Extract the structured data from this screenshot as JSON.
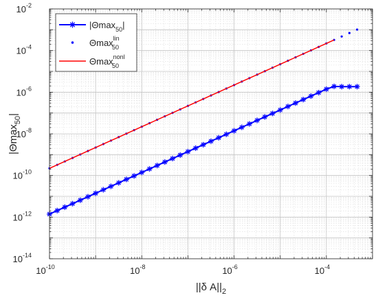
{
  "chart_data": {
    "type": "line",
    "xscale": "log",
    "yscale": "log",
    "xlim": [
      1e-10,
      0.001
    ],
    "ylim": [
      1e-14,
      0.01
    ],
    "grid": true,
    "legend_position": "top-left",
    "xlabel": {
      "base": "||δ A||",
      "sub": "2"
    },
    "ylabel": {
      "base": "|Θmax",
      "sub": "50",
      "tail": "|"
    },
    "x_ticks": [
      {
        "exp": "-10",
        "value": 1e-10
      },
      {
        "exp": "-8",
        "value": 1e-08
      },
      {
        "exp": "-6",
        "value": 1e-06
      },
      {
        "exp": "-4",
        "value": 0.0001
      }
    ],
    "y_ticks": [
      {
        "exp": "-14",
        "value": 1e-14
      },
      {
        "exp": "-12",
        "value": 1e-12
      },
      {
        "exp": "-10",
        "value": 1e-10
      },
      {
        "exp": "-8",
        "value": 1e-08
      },
      {
        "exp": "-6",
        "value": 1e-06
      },
      {
        "exp": "-4",
        "value": 0.0001
      },
      {
        "exp": "-2",
        "value": 0.01
      }
    ],
    "tick_base": "10",
    "series": [
      {
        "key": "abs",
        "legend": {
          "base": "|Θmax",
          "sub": "50",
          "tail": "|"
        },
        "color": "#0000ff",
        "style": "line-star",
        "x": [
          1e-10,
          1.47e-10,
          2.15e-10,
          3.16e-10,
          4.64e-10,
          6.81e-10,
          1e-09,
          1.47e-09,
          2.15e-09,
          3.16e-09,
          4.64e-09,
          6.81e-09,
          1e-08,
          1.47e-08,
          2.15e-08,
          3.16e-08,
          4.64e-08,
          6.81e-08,
          1e-07,
          1.47e-07,
          2.15e-07,
          3.16e-07,
          4.64e-07,
          6.81e-07,
          1e-06,
          1.47e-06,
          2.15e-06,
          3.16e-06,
          4.64e-06,
          6.81e-06,
          1e-05,
          1.47e-05,
          2.15e-05,
          3.16e-05,
          4.64e-05,
          6.81e-05,
          0.0001,
          0.000147,
          0.000215,
          0.000316,
          0.000464
        ],
        "y": [
          1.4e-12,
          2.06e-12,
          3.01e-12,
          4.43e-12,
          6.5e-12,
          9.53e-12,
          1.4e-11,
          2.06e-11,
          3.01e-11,
          4.43e-11,
          6.5e-11,
          9.53e-11,
          1.4e-10,
          2.06e-10,
          3.01e-10,
          4.43e-10,
          6.5e-10,
          9.53e-10,
          1.4e-09,
          2.06e-09,
          3.01e-09,
          4.43e-09,
          6.5e-09,
          9.53e-09,
          1.4e-08,
          2.06e-08,
          3.01e-08,
          4.43e-08,
          6.5e-08,
          9.53e-08,
          1.4e-07,
          2.06e-07,
          3.01e-07,
          4.43e-07,
          6.5e-07,
          9.53e-07,
          1.4e-06,
          1.9e-06,
          1.85e-06,
          1.85e-06,
          1.85e-06
        ]
      },
      {
        "key": "lin",
        "legend": {
          "base": "Θmax",
          "sub": "50",
          "sup": "lin"
        },
        "color": "#0000ff",
        "style": "dots",
        "x": [
          1e-10,
          1.47e-10,
          2.15e-10,
          3.16e-10,
          4.64e-10,
          6.81e-10,
          1e-09,
          1.47e-09,
          2.15e-09,
          3.16e-09,
          4.64e-09,
          6.81e-09,
          1e-08,
          1.47e-08,
          2.15e-08,
          3.16e-08,
          4.64e-08,
          6.81e-08,
          1e-07,
          1.47e-07,
          2.15e-07,
          3.16e-07,
          4.64e-07,
          6.81e-07,
          1e-06,
          1.47e-06,
          2.15e-06,
          3.16e-06,
          4.64e-06,
          6.81e-06,
          1e-05,
          1.47e-05,
          2.15e-05,
          3.16e-05,
          4.64e-05,
          6.81e-05,
          0.0001,
          0.000147,
          0.000215,
          0.000316,
          0.000464
        ],
        "y": [
          2.2e-10,
          3.24e-10,
          4.74e-10,
          6.97e-10,
          1.02e-09,
          1.5e-09,
          2.2e-09,
          3.24e-09,
          4.74e-09,
          6.97e-09,
          1.02e-08,
          1.5e-08,
          2.2e-08,
          3.24e-08,
          4.74e-08,
          6.97e-08,
          1.02e-07,
          1.5e-07,
          2.2e-07,
          3.24e-07,
          4.74e-07,
          6.97e-07,
          1.02e-06,
          1.5e-06,
          2.2e-06,
          3.24e-06,
          4.74e-06,
          6.97e-06,
          1.02e-05,
          1.5e-05,
          2.2e-05,
          3.24e-05,
          4.74e-05,
          6.97e-05,
          0.000102,
          0.00015,
          0.00022,
          0.000324,
          0.000474,
          0.000697,
          0.00102
        ]
      },
      {
        "key": "nonl",
        "legend": {
          "base": "Θmax",
          "sub": "50",
          "sup": "nonl"
        },
        "color": "#ff0000",
        "style": "line",
        "x": [
          1e-10,
          1.47e-10,
          2.15e-10,
          3.16e-10,
          4.64e-10,
          6.81e-10,
          1e-09,
          1.47e-09,
          2.15e-09,
          3.16e-09,
          4.64e-09,
          6.81e-09,
          1e-08,
          1.47e-08,
          2.15e-08,
          3.16e-08,
          4.64e-08,
          6.81e-08,
          1e-07,
          1.47e-07,
          2.15e-07,
          3.16e-07,
          4.64e-07,
          6.81e-07,
          1e-06,
          1.47e-06,
          2.15e-06,
          3.16e-06,
          4.64e-06,
          6.81e-06,
          1e-05,
          1.47e-05,
          2.15e-05,
          3.16e-05,
          4.64e-05,
          6.81e-05,
          0.0001,
          0.000147
        ],
        "y": [
          2.2e-10,
          3.24e-10,
          4.74e-10,
          6.97e-10,
          1.02e-09,
          1.5e-09,
          2.2e-09,
          3.24e-09,
          4.74e-09,
          6.97e-09,
          1.02e-08,
          1.5e-08,
          2.2e-08,
          3.24e-08,
          4.74e-08,
          6.97e-08,
          1.02e-07,
          1.5e-07,
          2.2e-07,
          3.24e-07,
          4.74e-07,
          6.97e-07,
          1.02e-06,
          1.5e-06,
          2.2e-06,
          3.24e-06,
          4.74e-06,
          6.97e-06,
          1.02e-05,
          1.5e-05,
          2.2e-05,
          3.24e-05,
          4.74e-05,
          6.97e-05,
          0.000102,
          0.00015,
          0.00022,
          0.000324
        ]
      }
    ]
  }
}
